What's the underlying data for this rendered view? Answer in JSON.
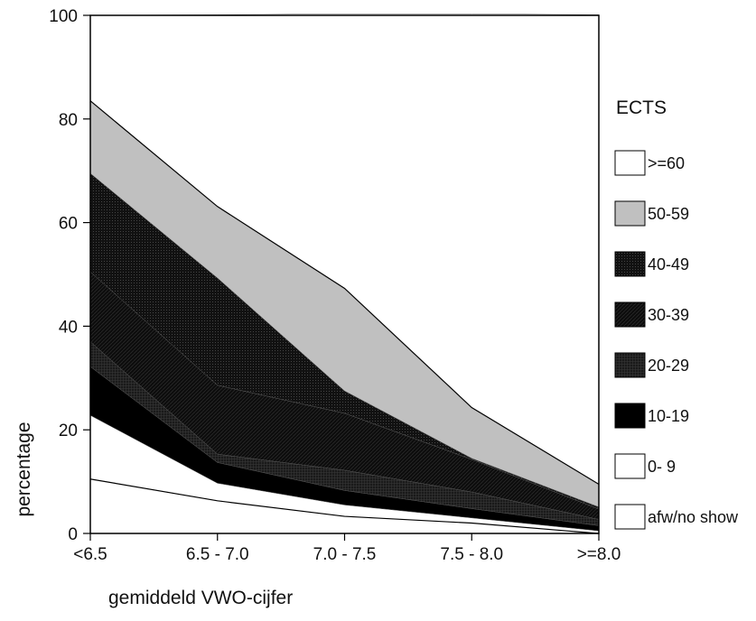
{
  "chart_data": {
    "type": "area",
    "stacked": true,
    "xlabel": "gemiddeld VWO-cijfer",
    "ylabel": "percentage",
    "ylim": [
      0,
      100
    ],
    "yticks": [
      0,
      20,
      40,
      60,
      80,
      100
    ],
    "categories": [
      "<6.5",
      "6.5 - 7.0",
      "7.0 - 7.5",
      "7.5 - 8.0",
      ">=8.0"
    ],
    "legend": {
      "title": "ECTS",
      "position": "right"
    },
    "series": [
      {
        "name": "afw/no show",
        "color": "#ffffff",
        "values": [
          10.5,
          6.3,
          3.3,
          2.0,
          0.0
        ]
      },
      {
        "name": "0- 9",
        "color": "#ffffff",
        "values": [
          12.3,
          3.4,
          2.2,
          1.0,
          0.5
        ]
      },
      {
        "name": "10-19",
        "color": "#000000",
        "values": [
          9.4,
          4.0,
          2.8,
          1.8,
          1.0
        ]
      },
      {
        "name": "20-29",
        "color": "#1a1a1a",
        "values": [
          4.8,
          1.6,
          3.9,
          3.2,
          1.2
        ]
      },
      {
        "name": "30-39",
        "color": "#111111",
        "values": [
          13.5,
          13.3,
          11.0,
          6.3,
          2.0
        ]
      },
      {
        "name": "40-49",
        "color": "#0d0d0d",
        "values": [
          19.0,
          20.7,
          4.3,
          0.2,
          0.4
        ]
      },
      {
        "name": "50-59",
        "color": "#c0c0c0",
        "values": [
          14.0,
          13.8,
          19.8,
          9.8,
          4.4
        ]
      },
      {
        "name": ">=60",
        "color": "#ffffff",
        "values": [
          16.5,
          37.0,
          53.0,
          76.0,
          90.6
        ]
      }
    ]
  }
}
